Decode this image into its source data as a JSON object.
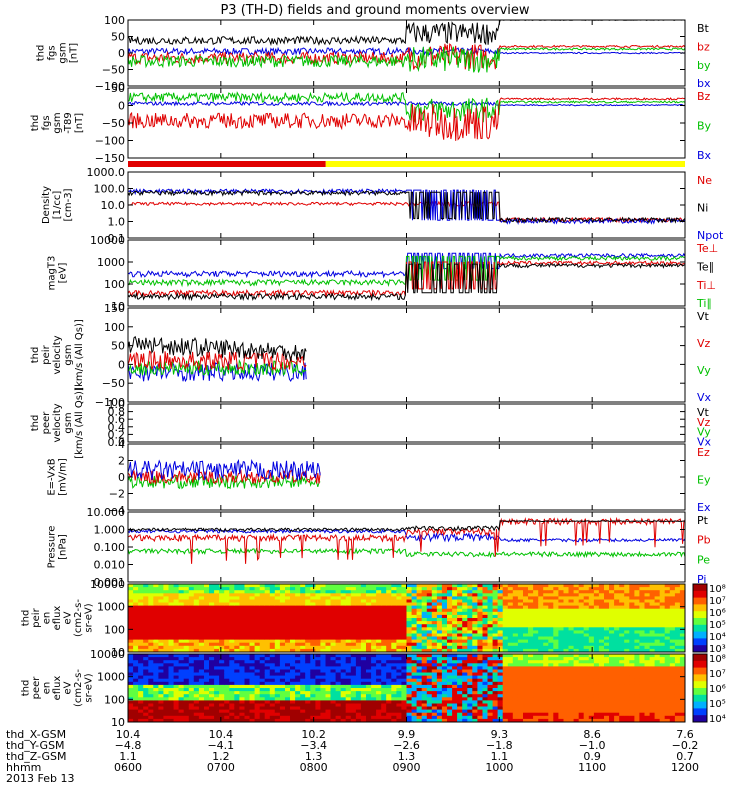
{
  "title": "P3 (TH-D) fields and ground moments overview",
  "x_range": [
    "0600",
    "1200"
  ],
  "panels": [
    {
      "key": "fgs",
      "ylabel_lines": [
        "thd",
        "fgs",
        "gsm",
        "[nT]"
      ],
      "yticks": [
        "100",
        "50",
        "0",
        "−50",
        "−100"
      ],
      "ylim": [
        -100,
        100
      ],
      "log": false,
      "legend": [
        {
          "text": "Bt",
          "color": "#000000"
        },
        {
          "text": "bz",
          "color": "#e00000"
        },
        {
          "text": "by",
          "color": "#00c000"
        },
        {
          "text": "bx",
          "color": "#0000e0"
        }
      ]
    },
    {
      "key": "fgs_dsl",
      "ylabel_lines": [
        "thd",
        "fgs",
        "gsm",
        "-T89",
        "[nT]"
      ],
      "yticks": [
        "50",
        "0",
        "−50",
        "−100",
        "−150"
      ],
      "ylim": [
        -175,
        50
      ],
      "log": false,
      "legend": [
        {
          "text": "Bz",
          "color": "#e00000"
        },
        {
          "text": "By",
          "color": "#00c000"
        },
        {
          "text": "Bx",
          "color": "#0000e0"
        }
      ]
    },
    {
      "key": "density",
      "ylabel_lines": [
        "Density",
        "[1/cc]",
        "[cm-3]"
      ],
      "yticks": [
        "1000.0",
        "100.0",
        "10.0",
        "1.0",
        "0.1"
      ],
      "ylim": [
        0.1,
        1000
      ],
      "log": true,
      "legend": [
        {
          "text": "Ne",
          "color": "#e00000"
        },
        {
          "text": "Ni",
          "color": "#000000"
        },
        {
          "text": "Npot",
          "color": "#0000e0"
        }
      ]
    },
    {
      "key": "temp",
      "ylabel_lines": [
        "magT3",
        "[eV]"
      ],
      "yticks": [
        "10000",
        "1000",
        "100",
        "10"
      ],
      "ylim": [
        10,
        10000
      ],
      "log": true,
      "legend": [
        {
          "text": "Te⊥",
          "color": "#e00000"
        },
        {
          "text": "Te∥",
          "color": "#000000"
        },
        {
          "text": "Ti⊥",
          "color": "#e00000"
        },
        {
          "text": "Ti∥",
          "color": "#00c000"
        }
      ]
    },
    {
      "key": "peir_vel",
      "ylabel_lines": [
        "thd",
        "peir",
        "velocity",
        "gsm",
        "[km/s (All Qs)]"
      ],
      "yticks": [
        "150",
        "100",
        "50",
        "0",
        "−50",
        "−100"
      ],
      "ylim": [
        -100,
        150
      ],
      "log": false,
      "legend": [
        {
          "text": "Vt",
          "color": "#000000"
        },
        {
          "text": "Vz",
          "color": "#e00000"
        },
        {
          "text": "Vy",
          "color": "#00c000"
        },
        {
          "text": "Vx",
          "color": "#0000e0"
        }
      ]
    },
    {
      "key": "peer_vel",
      "ylabel_lines": [
        "thd",
        "peer",
        "velocity",
        "gsm",
        "[km/s (All Qs)]"
      ],
      "yticks": [
        "1.0",
        "0.8",
        "0.6",
        "0.4",
        "0.2",
        "0.0"
      ],
      "ylim": [
        0,
        1
      ],
      "log": false,
      "legend": [
        {
          "text": "Vt",
          "color": "#000000"
        },
        {
          "text": "Vz",
          "color": "#e00000"
        },
        {
          "text": "Vy",
          "color": "#00c000"
        },
        {
          "text": "Vx",
          "color": "#0000e0"
        }
      ]
    },
    {
      "key": "efield",
      "ylabel_lines": [
        "E=-VxB",
        "[mV/m]"
      ],
      "yticks": [
        "4",
        "2",
        "0",
        "−2",
        "−4"
      ],
      "ylim": [
        -4,
        4
      ],
      "log": false,
      "legend": [
        {
          "text": "Ez",
          "color": "#e00000"
        },
        {
          "text": "Ey",
          "color": "#00c000"
        },
        {
          "text": "Ex",
          "color": "#0000e0"
        }
      ]
    },
    {
      "key": "pressure",
      "ylabel_lines": [
        "Pressure",
        "[nPa]"
      ],
      "yticks": [
        "10.000",
        "1.000",
        "0.100",
        "0.010",
        "0.001"
      ],
      "ylim": [
        0.001,
        10
      ],
      "log": true,
      "legend": [
        {
          "text": "Pt",
          "color": "#000000"
        },
        {
          "text": "Pb",
          "color": "#e00000"
        },
        {
          "text": "Pe",
          "color": "#00c000"
        },
        {
          "text": "Pi",
          "color": "#0000e0"
        }
      ]
    },
    {
      "key": "peir_spec",
      "ylabel_lines": [
        "thd",
        "peir",
        "en",
        "eflux",
        "eV",
        "(cm2-s-",
        "sr-eV)"
      ],
      "yticks": [
        "10000",
        "1000",
        "100",
        "10"
      ],
      "ylim": [
        10,
        10000
      ],
      "log": true,
      "cbar": [
        "10⁸",
        "10⁷",
        "10⁶",
        "10⁵",
        "10⁴",
        "10³"
      ]
    },
    {
      "key": "peer_spec",
      "ylabel_lines": [
        "thd",
        "peer",
        "en",
        "eflux",
        "eV",
        "(cm2-s-",
        "sr-eV)"
      ],
      "yticks": [
        "10000",
        "1000",
        "100",
        "10"
      ],
      "ylim": [
        10,
        10000
      ],
      "log": true,
      "cbar": [
        "10⁸",
        "10⁷",
        "10⁶",
        "10⁵",
        "10⁴"
      ]
    }
  ],
  "axis": {
    "row_labels": [
      "thd_X-GSM",
      "thd_Y-GSM",
      "thd_Z-GSM",
      "hhmm",
      "2013 Feb 13"
    ],
    "ticks": [
      {
        "x": "10.4",
        "y": "−4.8",
        "z": "1.1",
        "t": "0600"
      },
      {
        "x": "10.4",
        "y": "−4.1",
        "z": "1.2",
        "t": "0700"
      },
      {
        "x": "10.2",
        "y": "−3.4",
        "z": "1.3",
        "t": "0800"
      },
      {
        "x": "9.9",
        "y": "−2.6",
        "z": "1.3",
        "t": "0900"
      },
      {
        "x": "9.3",
        "y": "−1.8",
        "z": "1.1",
        "t": "1000"
      },
      {
        "x": "8.6",
        "y": "−1.0",
        "z": "0.9",
        "t": "1100"
      },
      {
        "x": "7.6",
        "y": "−0.2",
        "z": "0.7",
        "t": "1200"
      }
    ]
  },
  "chart_data": {
    "type": "line",
    "title": "P3 (TH-D) fields and ground moments overview",
    "x": [
      "0600",
      "0700",
      "0800",
      "0900",
      "1000",
      "1100",
      "1200"
    ],
    "series": [
      {
        "name": "Bt",
        "values": [
          40,
          42,
          45,
          55,
          100,
          100,
          100
        ]
      },
      {
        "name": "bz",
        "values": [
          -20,
          -15,
          -10,
          -20,
          20,
          20,
          20
        ]
      },
      {
        "name": "by",
        "values": [
          -30,
          -25,
          -20,
          -10,
          10,
          10,
          10
        ]
      },
      {
        "name": "bx",
        "values": [
          0,
          5,
          5,
          10,
          0,
          0,
          0
        ]
      },
      {
        "name": "Ni",
        "values": [
          60,
          65,
          60,
          3,
          1,
          1,
          1
        ]
      },
      {
        "name": "Ne",
        "values": [
          12,
          12,
          12,
          12,
          1.3,
          1.3,
          1.3
        ]
      },
      {
        "name": "Pt",
        "values": [
          0.9,
          0.9,
          0.9,
          1.2,
          3,
          3,
          3
        ]
      }
    ]
  }
}
